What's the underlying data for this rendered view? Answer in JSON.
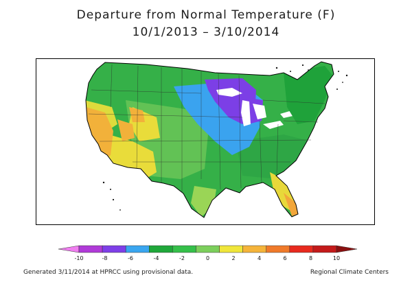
{
  "title": {
    "line1": "Departure from Normal Temperature (F)",
    "line2": "10/1/2013 – 3/10/2014"
  },
  "legend": {
    "ticks": [
      "-10",
      "-8",
      "-6",
      "-4",
      "-2",
      "0",
      "2",
      "4",
      "6",
      "8",
      "10"
    ],
    "colors": [
      "#f07ef0",
      "#b03ad8",
      "#7e3fe8",
      "#3aa6f0",
      "#1fa83a",
      "#35c04a",
      "#7ccf5c",
      "#f0e63a",
      "#f5b43a",
      "#f07a2a",
      "#e82a1e",
      "#c41a1a",
      "#8a1010"
    ]
  },
  "footer": {
    "left": "Generated 3/11/2014 at HPRCC using provisional data.",
    "right": "Regional Climate Centers"
  }
}
